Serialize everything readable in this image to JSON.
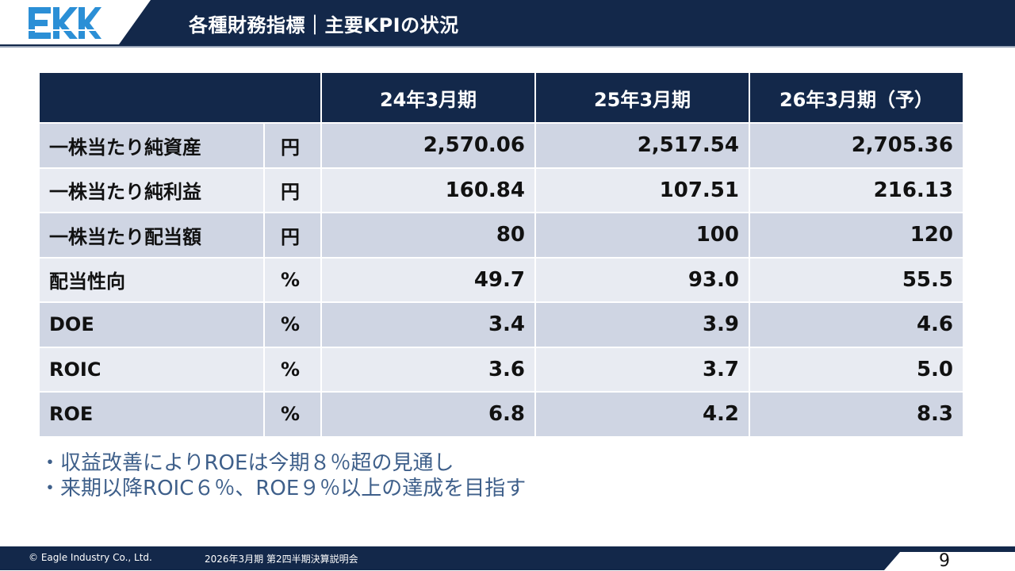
{
  "header": {
    "logo_text": "EKK",
    "title": "各種財務指標｜主要KPIの状況",
    "colors": {
      "navy": "#13284a",
      "logo_blue": "#2b8fd6"
    }
  },
  "table": {
    "columns": [
      "24年3月期",
      "25年3月期",
      "26年3月期（予）"
    ],
    "rows": [
      {
        "label": "一株当たり純資産",
        "unit": "円",
        "values": [
          "2,570.06",
          "2,517.54",
          "2,705.36"
        ]
      },
      {
        "label": "一株当たり純利益",
        "unit": "円",
        "values": [
          "160.84",
          "107.51",
          "216.13"
        ]
      },
      {
        "label": "一株当たり配当額",
        "unit": "円",
        "values": [
          "80",
          "100",
          "120"
        ]
      },
      {
        "label": "配当性向",
        "unit": "%",
        "values": [
          "49.7",
          "93.0",
          "55.5"
        ]
      },
      {
        "label": "DOE",
        "unit": "%",
        "values": [
          "3.4",
          "3.9",
          "4.6"
        ]
      },
      {
        "label": "ROIC",
        "unit": "%",
        "values": [
          "3.6",
          "3.7",
          "5.0"
        ]
      },
      {
        "label": "ROE",
        "unit": "%",
        "values": [
          "6.8",
          "4.2",
          "8.3"
        ]
      }
    ]
  },
  "notes": [
    "・収益改善によりROEは今期８％超の見通し",
    "・来期以降ROIC６％、ROE９％以上の達成を目指す"
  ],
  "footer": {
    "copyright": "© Eagle Industry Co., Ltd.",
    "event": "2026年3月期 第2四半期決算説明会",
    "page": "9"
  }
}
